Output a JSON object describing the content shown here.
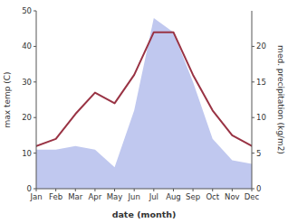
{
  "chart_data": {
    "type": "line",
    "categories": [
      "Jan",
      "Feb",
      "Mar",
      "Apr",
      "May",
      "Jun",
      "Jul",
      "Aug",
      "Sep",
      "Oct",
      "Nov",
      "Dec"
    ],
    "xlabel": "date (month)",
    "ylabel": "max temp (C)",
    "y2label": "med. precipitation (kg/m2)",
    "ylim": [
      0,
      50
    ],
    "yticks": [
      0,
      10,
      20,
      30,
      40,
      50
    ],
    "y2lim": [
      0,
      25
    ],
    "y2ticks": [
      0,
      5,
      10,
      15,
      20
    ],
    "series": [
      {
        "type": "area",
        "axis": "y2",
        "color": "#c0c8ef",
        "values": [
          5.5,
          5.5,
          6,
          5.5,
          3,
          11,
          24,
          22,
          15,
          7,
          4,
          3.5
        ]
      },
      {
        "type": "line",
        "color": "#993344",
        "values": [
          12,
          14,
          21,
          27,
          24,
          32,
          44,
          44,
          32,
          22,
          15,
          12
        ]
      }
    ]
  }
}
